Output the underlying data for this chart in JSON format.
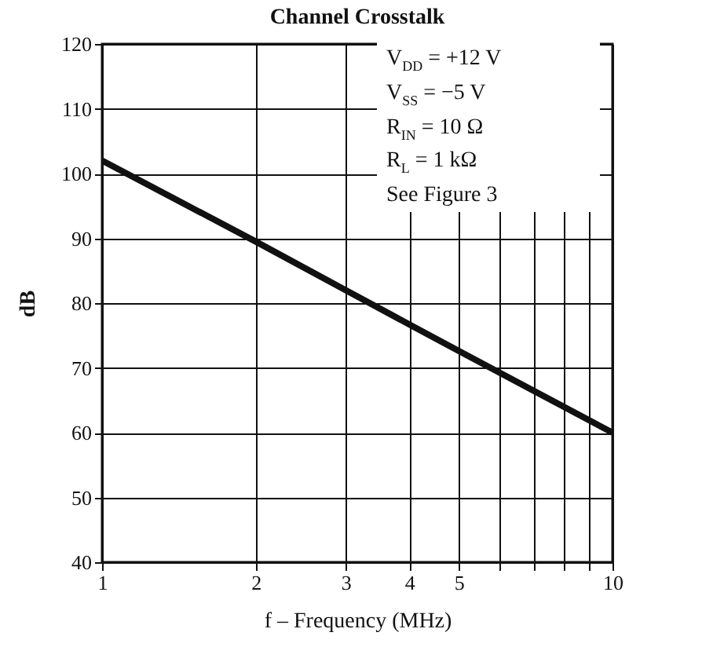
{
  "chart_data": {
    "type": "line",
    "title": "Channel Crosstalk",
    "xlabel": "f – Frequency (MHz)",
    "ylabel": "dB",
    "x": [
      1,
      2,
      3,
      4,
      5,
      10
    ],
    "series": [
      {
        "color": "#111111",
        "values": [
          102,
          89.5,
          82,
          76.7,
          72.6,
          60
        ]
      }
    ],
    "xlim": [
      1,
      10
    ],
    "ylim": [
      40,
      120
    ],
    "xticks": [
      1,
      2,
      3,
      4,
      5,
      {
        "value": 6,
        "label": null
      },
      {
        "value": 7,
        "label": null
      },
      {
        "value": 8,
        "label": null
      },
      {
        "value": 9,
        "label": null
      },
      10
    ],
    "yticks": [
      40,
      50,
      60,
      70,
      80,
      90,
      100,
      110,
      120
    ],
    "log": "x",
    "grid": true,
    "marker": "none",
    "line_style": "solid",
    "annotations": [
      "V$_{DD}$ = +12 V",
      "V$_{SS}$ = −5 V",
      "R$_{IN}$ = 10 Ω",
      "R$_{L}$ = 1 kΩ",
      "See Figure 3"
    ]
  }
}
